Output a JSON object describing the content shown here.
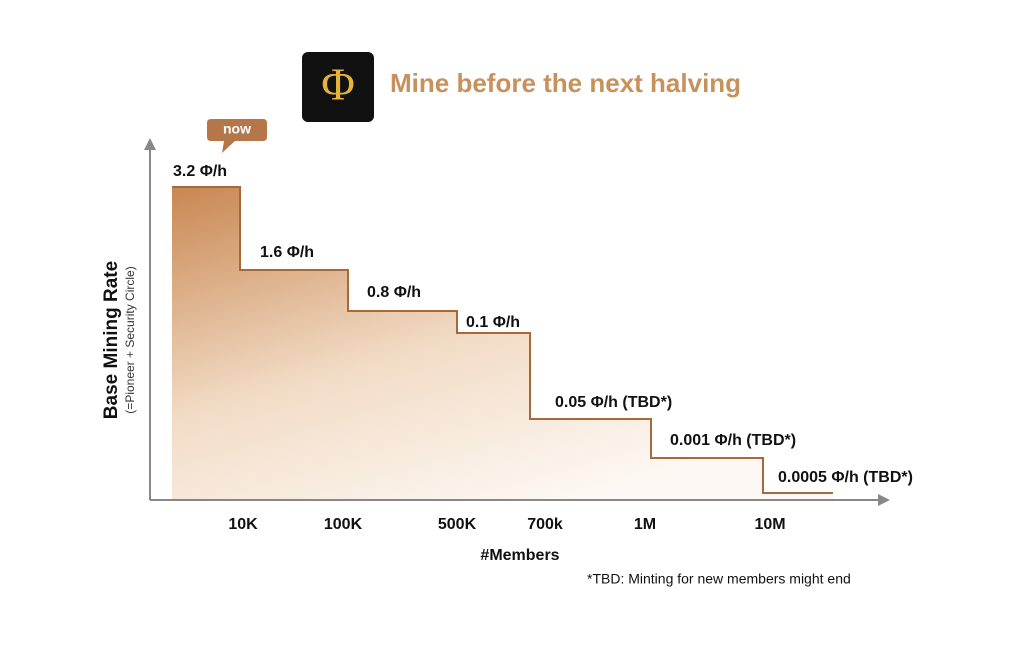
{
  "header": {
    "logo": "Φ",
    "title": "Mine before the next halving"
  },
  "badge": "now",
  "y_axis": {
    "label": "Base Mining Rate",
    "sublabel": "(=Pioneer + Security Circle)"
  },
  "steps": [
    "3.2 Φ/h",
    "1.6 Φ/h",
    "0.8 Φ/h",
    "0.1 Φ/h",
    "0.05 Φ/h (TBD*)",
    "0.001 Φ/h (TBD*)",
    "0.0005 Φ/h (TBD*)"
  ],
  "x_axis": {
    "ticks": [
      "10K",
      "100K",
      "500K",
      "700k",
      "1M",
      "10M"
    ],
    "label": "#Members"
  },
  "footnote": "*TBD: Minting for new members might end"
}
